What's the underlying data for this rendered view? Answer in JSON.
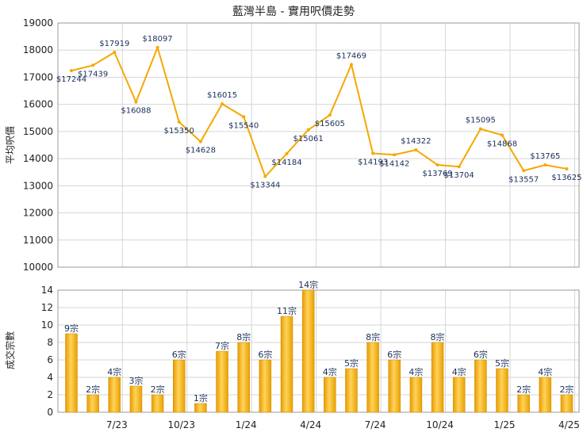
{
  "chart_data": [
    {
      "type": "line",
      "title": "藍灣半島 - 實用呎價走勢",
      "ylabel": "平均呎價",
      "ylim": [
        10000,
        19000
      ],
      "yticks": [
        10000,
        11000,
        12000,
        13000,
        14000,
        15000,
        16000,
        17000,
        18000,
        19000
      ],
      "grid": true,
      "line_color": "#f5a800",
      "label_prefix": "$",
      "series": [
        {
          "values": [
            17244,
            17439,
            17919,
            16088,
            18097,
            15350,
            14628,
            16015,
            15540,
            13344,
            14184,
            15061,
            15605,
            17469,
            14193,
            14142,
            14322,
            13769,
            13704,
            15095,
            14868,
            13557,
            13765,
            13625
          ]
        }
      ]
    },
    {
      "type": "bar",
      "ylabel": "成交宗數",
      "ylim": [
        0,
        14
      ],
      "yticks": [
        0,
        2,
        4,
        6,
        8,
        10,
        12,
        14
      ],
      "grid": true,
      "bar_color": "#f3b21a",
      "label_suffix": "宗",
      "x_tick_labels": [
        {
          "index": 2,
          "label": "7/23"
        },
        {
          "index": 5,
          "label": "10/23"
        },
        {
          "index": 8,
          "label": "1/24"
        },
        {
          "index": 11,
          "label": "4/24"
        },
        {
          "index": 14,
          "label": "7/24"
        },
        {
          "index": 17,
          "label": "10/24"
        },
        {
          "index": 20,
          "label": "1/25"
        },
        {
          "index": 23,
          "label": "4/25"
        }
      ],
      "values": [
        9,
        2,
        4,
        3,
        2,
        6,
        1,
        7,
        8,
        6,
        11,
        14,
        4,
        5,
        8,
        6,
        4,
        8,
        4,
        6,
        5,
        2,
        4,
        2
      ]
    }
  ]
}
